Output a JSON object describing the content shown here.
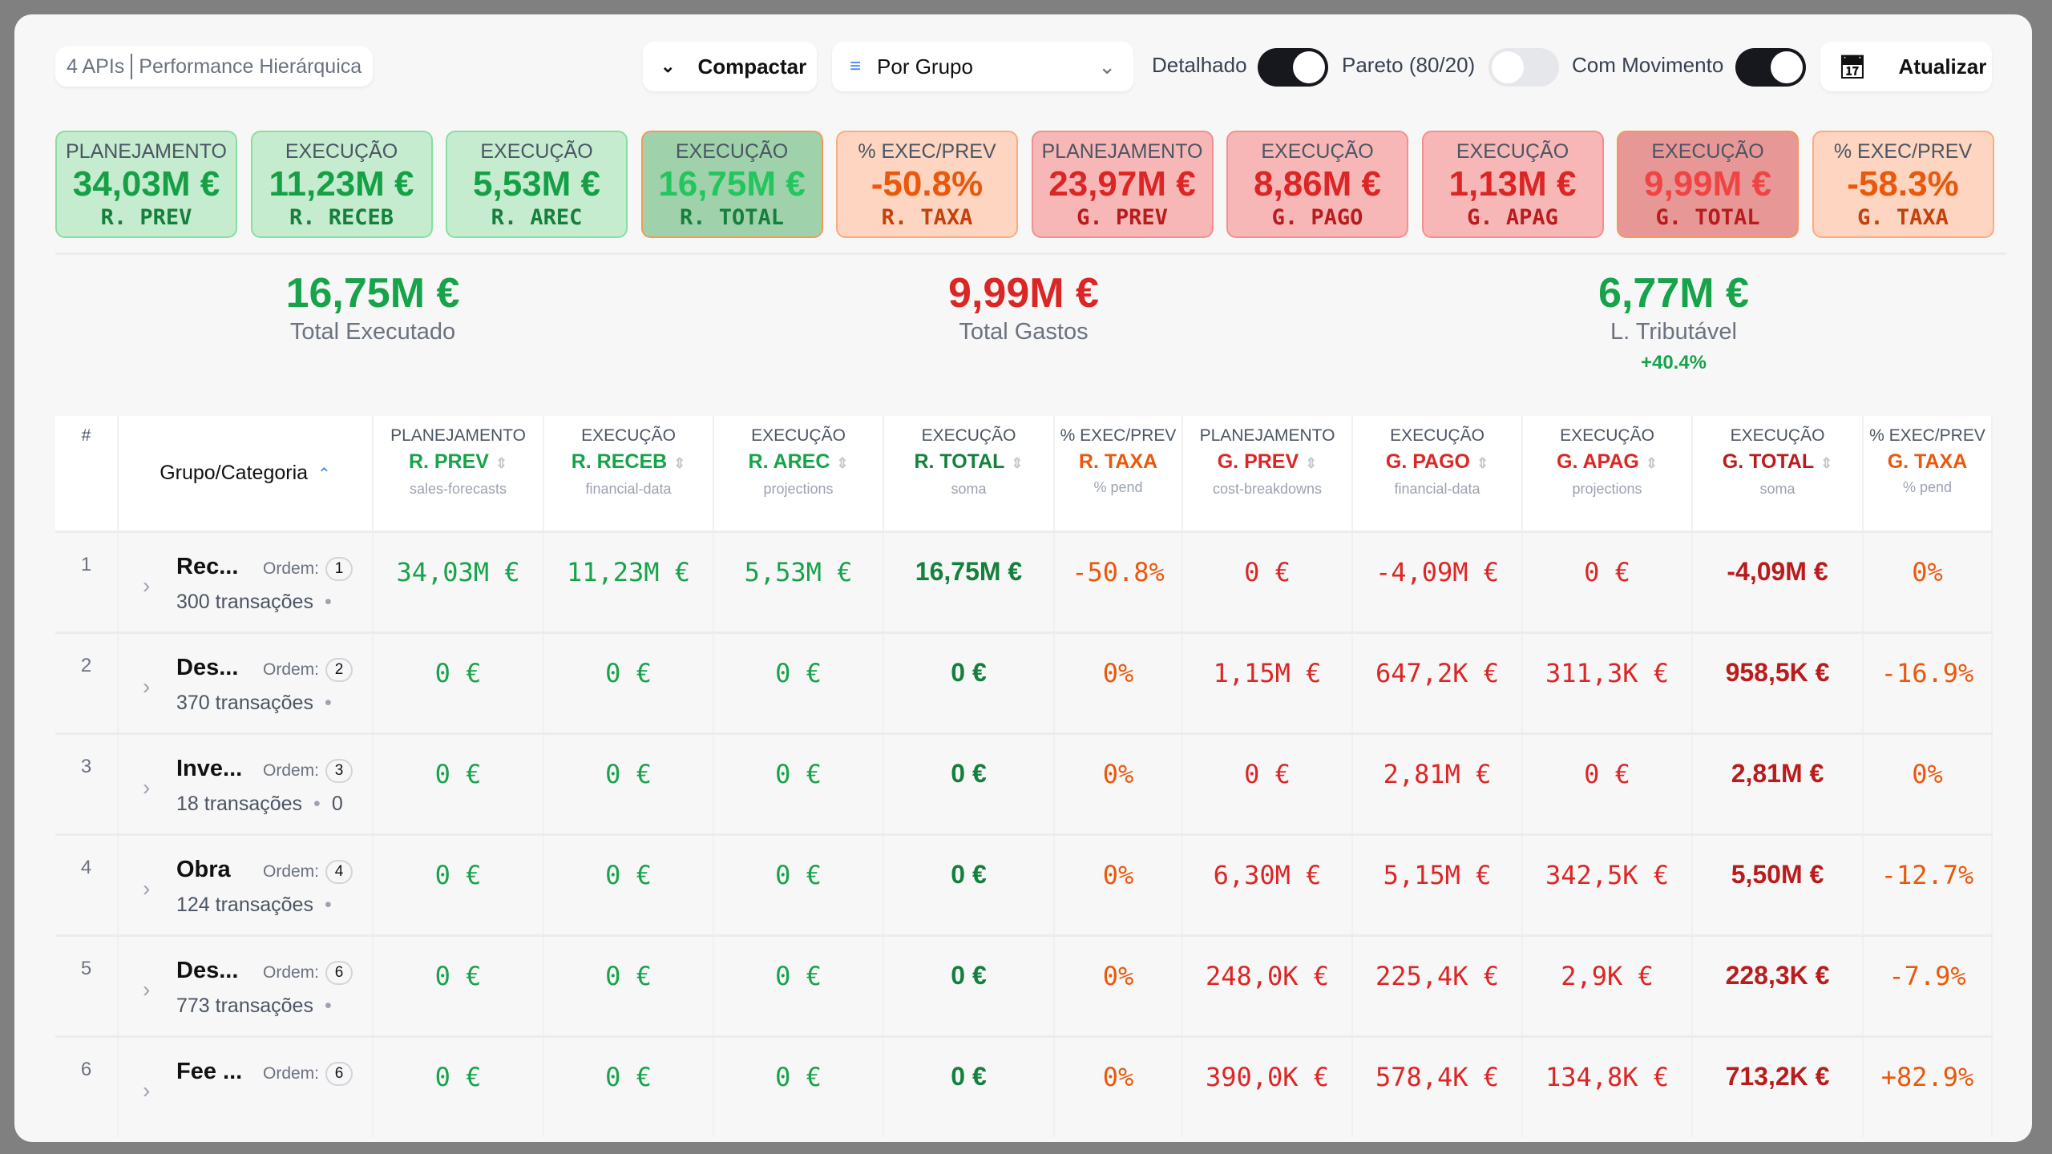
{
  "toolbar": {
    "apis": "4 APIs",
    "title": "Performance Hierárquica",
    "compact": "Compactar",
    "group_select": "Por Grupo",
    "detailed": "Detalhado",
    "pareto": "Pareto (80/20)",
    "movement": "Com Movimento",
    "refresh": "Atualizar",
    "toggles": {
      "detailed": true,
      "pareto": false,
      "movement": true
    }
  },
  "kpis": [
    {
      "label": "PLANEJAMENTO",
      "value": "34,03M €",
      "sub": "R. PREV",
      "style": "g"
    },
    {
      "label": "EXECUÇÃO",
      "value": "11,23M €",
      "sub": "R. RECEB",
      "style": "g"
    },
    {
      "label": "EXECUÇÃO",
      "value": "5,53M €",
      "sub": "R. AREC",
      "style": "g"
    },
    {
      "label": "EXECUÇÃO",
      "value": "16,75M €",
      "sub": "R. TOTAL",
      "style": "gt"
    },
    {
      "label": "% EXEC/PREV",
      "value": "-50.8%",
      "sub": "R. TAXA",
      "style": "o"
    },
    {
      "label": "PLANEJAMENTO",
      "value": "23,97M €",
      "sub": "G. PREV",
      "style": "r"
    },
    {
      "label": "EXECUÇÃO",
      "value": "8,86M €",
      "sub": "G. PAGO",
      "style": "r"
    },
    {
      "label": "EXECUÇÃO",
      "value": "1,13M €",
      "sub": "G. APAG",
      "style": "r"
    },
    {
      "label": "EXECUÇÃO",
      "value": "9,99M €",
      "sub": "G. TOTAL",
      "style": "rt"
    },
    {
      "label": "% EXEC/PREV",
      "value": "-58.3%",
      "sub": "G. TAXA",
      "style": "o"
    }
  ],
  "summary": {
    "executed": {
      "value": "16,75M €",
      "label": "Total Executado"
    },
    "expenses": {
      "value": "9,99M €",
      "label": "Total Gastos"
    },
    "taxable": {
      "value": "6,77M €",
      "label": "L. Tributável",
      "change": "+40.4%"
    }
  },
  "table": {
    "index_header": "#",
    "group_header": "Grupo/Categoria",
    "columns": [
      {
        "top": "PLANEJAMENTO",
        "key": "R. PREV",
        "source": "sales-forecasts",
        "color": "cg",
        "sortable": true
      },
      {
        "top": "EXECUÇÃO",
        "key": "R. RECEB",
        "source": "financial-data",
        "color": "cg",
        "sortable": true
      },
      {
        "top": "EXECUÇÃO",
        "key": "R. AREC",
        "source": "projections",
        "color": "cg",
        "sortable": true
      },
      {
        "top": "EXECUÇÃO",
        "key": "R. TOTAL",
        "source": "soma",
        "color": "cgt",
        "sortable": true
      },
      {
        "top": "% EXEC/PREV",
        "key": "R. TAXA",
        "source": "% pend",
        "color": "co",
        "sortable": false
      },
      {
        "top": "PLANEJAMENTO",
        "key": "G. PREV",
        "source": "cost-breakdowns",
        "color": "cr",
        "sortable": true
      },
      {
        "top": "EXECUÇÃO",
        "key": "G. PAGO",
        "source": "financial-data",
        "color": "cr",
        "sortable": true
      },
      {
        "top": "EXECUÇÃO",
        "key": "G. APAG",
        "source": "projections",
        "color": "cr",
        "sortable": true
      },
      {
        "top": "EXECUÇÃO",
        "key": "G. TOTAL",
        "source": "soma",
        "color": "crt",
        "sortable": true
      },
      {
        "top": "% EXEC/PREV",
        "key": "G. TAXA",
        "source": "% pend",
        "color": "co",
        "sortable": false
      }
    ],
    "order_label": "Ordem:",
    "rows": [
      {
        "idx": "1",
        "name": "Rec...",
        "order": "1",
        "tx": "300 transações",
        "extra": "",
        "cells": [
          "34,03M €",
          "11,23M €",
          "5,53M €",
          "16,75M €",
          "-50.8%",
          "0 €",
          "-4,09M €",
          "0 €",
          "-4,09M €",
          "0%"
        ]
      },
      {
        "idx": "2",
        "name": "Des...",
        "order": "2",
        "tx": "370 transações",
        "extra": "",
        "cells": [
          "0 €",
          "0 €",
          "0 €",
          "0 €",
          "0%",
          "1,15M €",
          "647,2K €",
          "311,3K €",
          "958,5K €",
          "-16.9%"
        ]
      },
      {
        "idx": "3",
        "name": "Inve...",
        "order": "3",
        "tx": "18 transações",
        "extra": "0",
        "cells": [
          "0 €",
          "0 €",
          "0 €",
          "0 €",
          "0%",
          "0 €",
          "2,81M €",
          "0 €",
          "2,81M €",
          "0%"
        ]
      },
      {
        "idx": "4",
        "name": "Obra",
        "order": "4",
        "tx": "124 transações",
        "extra": "",
        "cells": [
          "0 €",
          "0 €",
          "0 €",
          "0 €",
          "0%",
          "6,30M €",
          "5,15M €",
          "342,5K €",
          "5,50M €",
          "-12.7%"
        ]
      },
      {
        "idx": "5",
        "name": "Des...",
        "order": "6",
        "tx": "773 transações",
        "extra": "",
        "cells": [
          "0 €",
          "0 €",
          "0 €",
          "0 €",
          "0%",
          "248,0K €",
          "225,4K €",
          "2,9K €",
          "228,3K €",
          "-7.9%"
        ]
      },
      {
        "idx": "6",
        "name": "Fee ...",
        "order": "6",
        "tx": "",
        "extra": "",
        "cells": [
          "0 €",
          "0 €",
          "0 €",
          "0 €",
          "0%",
          "390,0K €",
          "578,4K €",
          "134,8K €",
          "713,2K €",
          "+82.9%"
        ]
      }
    ]
  }
}
